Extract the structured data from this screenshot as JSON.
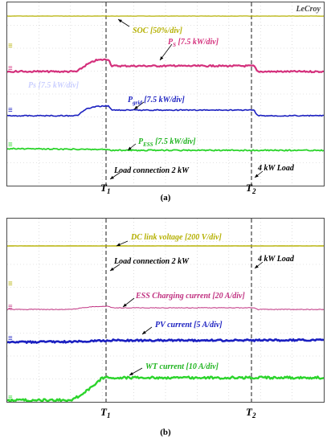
{
  "figure": {
    "caption_a": "(a)",
    "caption_b": "(b)",
    "brand": "LeCroy",
    "event_labels": [
      "T1",
      "T2"
    ]
  },
  "chart_data": [
    {
      "type": "line",
      "title": "",
      "series": [
        {
          "name": "SOC [50%/div]",
          "color": "#b5b000",
          "trace": [
            [
              0,
              1.0
            ],
            [
              1,
              1.0
            ]
          ]
        },
        {
          "name": "PS [7.5 kW/div]",
          "color": "#d4307c",
          "trace": [
            [
              0,
              0.0
            ],
            [
              0.22,
              0.0
            ],
            [
              0.25,
              0.3
            ],
            [
              0.28,
              0.5
            ],
            [
              0.32,
              0.55
            ],
            [
              0.33,
              0.25
            ],
            [
              0.78,
              0.25
            ],
            [
              0.79,
              0.0
            ],
            [
              1,
              0.0
            ]
          ]
        },
        {
          "name": "Pgrid [7.5 kW/div]",
          "color": "#1a1fc0",
          "trace": [
            [
              0,
              0.0
            ],
            [
              0.22,
              0.0
            ],
            [
              0.25,
              0.3
            ],
            [
              0.28,
              0.4
            ],
            [
              0.32,
              0.45
            ],
            [
              0.33,
              0.25
            ],
            [
              0.78,
              0.25
            ],
            [
              0.79,
              0.0
            ],
            [
              1,
              0.0
            ]
          ]
        },
        {
          "name": "PESS [7.5 kW/div]",
          "color": "#2bd42b",
          "trace": [
            [
              0,
              0.0
            ],
            [
              0.3,
              -0.05
            ],
            [
              0.33,
              -0.1
            ],
            [
              1,
              -0.1
            ]
          ]
        }
      ],
      "ghost_label": "Ps [7.5 kW/div]",
      "annotations": [
        "Load connection 2 kW",
        "4 kW Load"
      ],
      "events": [
        "T1",
        "T2"
      ]
    },
    {
      "type": "line",
      "title": "",
      "series": [
        {
          "name": "DC link voltage [200 V/div]",
          "color": "#b5b000",
          "trace": [
            [
              0,
              1.0
            ],
            [
              1,
              1.0
            ]
          ]
        },
        {
          "name": "ESS Charging current [20 A/div]",
          "color": "#c03080",
          "trace": [
            [
              0,
              0.0
            ],
            [
              0.2,
              0.0
            ],
            [
              0.26,
              0.15
            ],
            [
              0.32,
              0.2
            ],
            [
              0.33,
              0.1
            ],
            [
              0.78,
              0.1
            ],
            [
              0.79,
              0.0
            ],
            [
              1,
              0.0
            ]
          ]
        },
        {
          "name": "PV current [5 A/div]",
          "color": "#1a1fc0",
          "trace": [
            [
              0,
              0.0
            ],
            [
              0.2,
              0.1
            ],
            [
              0.33,
              0.3
            ],
            [
              0.6,
              0.3
            ],
            [
              1,
              0.35
            ]
          ]
        },
        {
          "name": "WT current [10 A/div]",
          "color": "#2bd42b",
          "trace": [
            [
              0,
              0.0
            ],
            [
              0.2,
              0.0
            ],
            [
              0.23,
              0.2
            ],
            [
              0.27,
              0.6
            ],
            [
              0.3,
              1.0
            ],
            [
              1,
              1.0
            ]
          ]
        }
      ],
      "annotations": [
        "Load connection 2 kW",
        "4 kW Load"
      ],
      "events": [
        "T1",
        "T2"
      ]
    }
  ]
}
